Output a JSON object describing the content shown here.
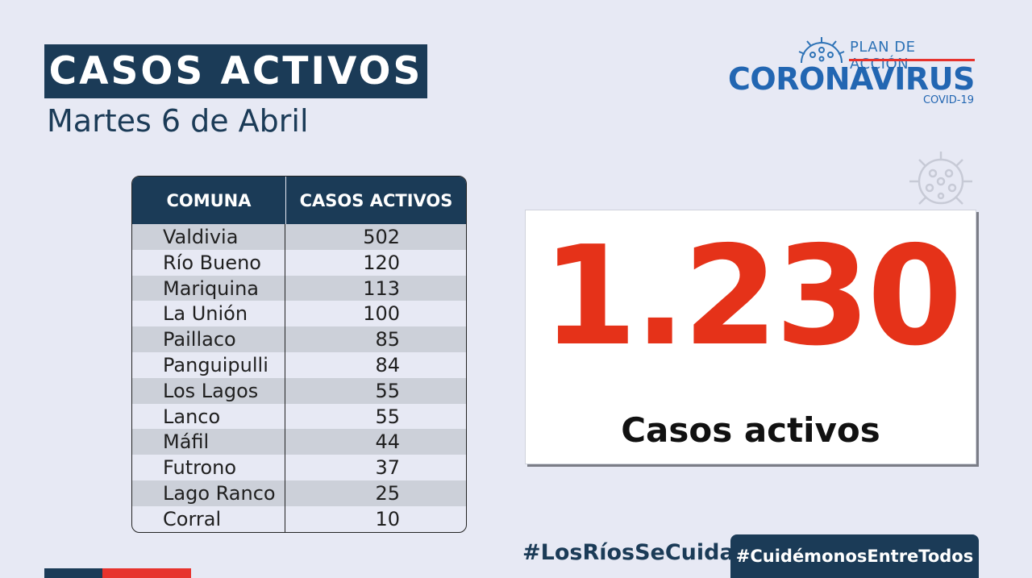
{
  "header": {
    "title": "CASOS ACTIVOS",
    "date": "Martes 6 de Abril"
  },
  "logo": {
    "plan": "PLAN DE ACCIÓN",
    "name": "CORONAVIRUS",
    "sub": "COVID-19"
  },
  "table": {
    "headers": [
      "COMUNA",
      "CASOS ACTIVOS"
    ],
    "rows": [
      {
        "comuna": "Valdivia",
        "casos": "502"
      },
      {
        "comuna": "Río Bueno",
        "casos": "120"
      },
      {
        "comuna": "Mariquina",
        "casos": "113"
      },
      {
        "comuna": "La Unión",
        "casos": "100"
      },
      {
        "comuna": "Paillaco",
        "casos": "85"
      },
      {
        "comuna": "Panguipulli",
        "casos": "84"
      },
      {
        "comuna": "Los Lagos",
        "casos": "55"
      },
      {
        "comuna": "Lanco",
        "casos": "55"
      },
      {
        "comuna": "Máfil",
        "casos": "44"
      },
      {
        "comuna": "Futrono",
        "casos": "37"
      },
      {
        "comuna": "Lago Ranco",
        "casos": "25"
      },
      {
        "comuna": "Corral",
        "casos": "10"
      }
    ]
  },
  "summary": {
    "total": "1.230",
    "label": "Casos activos"
  },
  "footer": {
    "hashtag_regional": "#LosRíosSeCuida",
    "hashtag_national": "#CuidémonosEntreTodos"
  },
  "colors": {
    "navy": "#1b3b57",
    "red": "#e53219",
    "logo_blue": "#2266b2"
  }
}
